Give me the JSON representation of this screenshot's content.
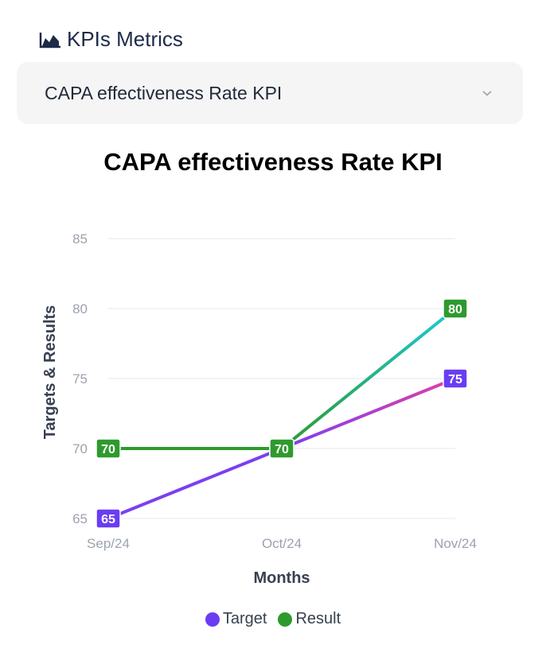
{
  "header": {
    "title": "KPIs Metrics",
    "icon": "area-chart-icon"
  },
  "kpi_select": {
    "value": "CAPA effectiveness Rate KPI",
    "icon": "chevron-down-icon"
  },
  "colors": {
    "target": "#6a3df3",
    "target_line_start": "#7b3ff0",
    "target_line_end": "#e040a8",
    "result": "#2e9a2e",
    "result_line_end": "#1ec9d6",
    "grid": "#e5e7eb",
    "tick": "#9ca3af",
    "axis_label": "#374151"
  },
  "chart_data": {
    "type": "line",
    "title": "CAPA effectiveness Rate KPI",
    "xlabel": "Months",
    "ylabel": "Targets & Results",
    "categories": [
      "Sep/24",
      "Oct/24",
      "Nov/24"
    ],
    "yticks": [
      65,
      70,
      75,
      80,
      85
    ],
    "ylim": [
      65,
      85
    ],
    "grid": true,
    "legend_position": "bottom",
    "series": [
      {
        "name": "Target",
        "values": [
          65,
          70,
          75
        ]
      },
      {
        "name": "Result",
        "values": [
          70,
          70,
          80
        ]
      }
    ]
  }
}
